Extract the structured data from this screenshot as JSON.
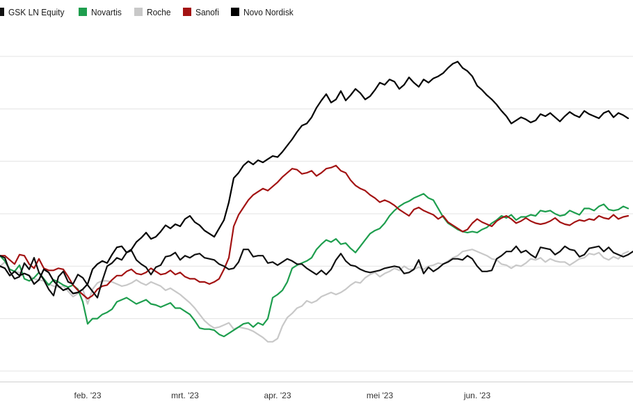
{
  "chart_data": {
    "type": "line",
    "title": "",
    "xlabel": "",
    "ylabel": "",
    "grid": true,
    "legend_position": "top-left",
    "x_ticks": [
      "feb. '23",
      "mrt. '23",
      "apr. '23",
      "mei '23",
      "jun. '23"
    ],
    "x_tick_index": [
      18,
      38,
      57,
      78,
      98
    ],
    "ylim": [
      89,
      120
    ],
    "y_gridlines": [
      90,
      95,
      100,
      105,
      110,
      115,
      120
    ],
    "series": [
      {
        "name": "GSK LN Equity",
        "color": "#111111",
        "values": [
          101,
          100.8,
          99.5,
          98.8,
          99,
          100.3,
          99.7,
          100.8,
          99.4,
          98.7,
          97.8,
          97.2,
          99,
          99.5,
          98.5,
          98.3,
          99.2,
          98.9,
          98.2,
          97.6,
          97,
          98.6,
          100,
          100.3,
          100.8,
          100.6,
          101.3,
          101.5,
          100.6,
          100.2,
          99.9,
          99.2,
          99.9,
          100.1,
          100.9,
          101,
          101.3,
          100.6,
          101,
          100.8,
          101.1,
          101.2,
          100.8,
          100.7,
          100.6,
          100.2,
          100,
          99.7,
          99.8,
          100.4,
          101.6,
          101.6,
          100.9,
          101,
          101,
          100.3,
          100.4,
          100.1,
          100.4,
          100.7,
          100.5,
          100.2,
          100.2,
          99.8,
          99.5,
          99.2,
          99.6,
          99.2,
          99.7,
          100.6,
          101.2,
          100.5,
          100.1,
          100,
          99.7,
          99.5,
          99.4,
          99.5,
          99.6,
          99.8,
          99.9,
          100,
          99.9,
          99.3,
          99.4,
          99.7,
          100.6,
          99.3,
          99.9,
          99.5,
          99.8,
          100.2,
          100.4,
          100.7,
          100.7,
          100.6,
          101,
          100.7,
          100,
          99.5,
          99.5,
          99.6,
          100.7,
          101,
          101.4,
          101.4,
          101.9,
          101.3,
          101.5,
          101.1,
          100.8,
          101.8,
          101.7,
          101.6,
          101.1,
          101.4,
          101.9,
          101.6,
          101.5,
          100.9,
          101.1,
          101.7,
          101.8,
          101.9,
          101.4,
          101.8,
          101.3,
          101.1,
          100.9,
          101.1,
          101.4
        ]
      },
      {
        "name": "Novartis",
        "color": "#1e9e4e",
        "values": [
          101,
          100.5,
          99.7,
          99.5,
          100.1,
          98.8,
          98.6,
          98.9,
          99.4,
          98.8,
          98.2,
          98.7,
          98.5,
          98.2,
          98,
          98.2,
          97.8,
          96.6,
          94.5,
          95,
          95,
          95.4,
          95.6,
          95.9,
          96.6,
          96.8,
          97,
          96.7,
          96.4,
          96.6,
          96.8,
          96.4,
          96.3,
          96.1,
          96.3,
          96.5,
          96,
          96,
          95.7,
          95.4,
          94.8,
          94.1,
          94,
          94,
          93.9,
          93.5,
          93.3,
          93.6,
          93.9,
          94.2,
          94.5,
          94.6,
          94.2,
          94.6,
          94.4,
          95,
          97,
          97.3,
          97.7,
          98.5,
          99.8,
          100.1,
          100.3,
          100.5,
          100.8,
          101.6,
          102.1,
          102.5,
          102.3,
          102.6,
          102.1,
          102.2,
          101.7,
          101.3,
          101.9,
          102.5,
          103.1,
          103.4,
          103.6,
          104.1,
          104.8,
          105.3,
          105.7,
          106,
          106.2,
          106.5,
          106.7,
          106.9,
          106.5,
          106.3,
          105.5,
          104.7,
          104.1,
          103.8,
          103.5,
          103.3,
          103.2,
          103.3,
          103.2,
          103.5,
          103.7,
          104.1,
          104.4,
          104.8,
          104.6,
          104.9,
          104.4,
          104.7,
          104.7,
          104.9,
          104.8,
          105.3,
          105.2,
          105.3,
          105,
          104.8,
          104.9,
          105.3,
          105.1,
          104.9,
          105.5,
          105.5,
          105.3,
          105.7,
          105.9,
          105.4,
          105.3,
          105.4,
          105.7,
          105.5
        ]
      },
      {
        "name": "Roche",
        "color": "#c8c8c8",
        "values": [
          100,
          100.4,
          99.7,
          99.5,
          99.4,
          99.3,
          99.1,
          98.8,
          98.7,
          98.6,
          98.3,
          98.1,
          98,
          98.1,
          97.6,
          97.1,
          97.4,
          97.8,
          96.4,
          97.8,
          98.4,
          98.6,
          98.6,
          98.5,
          98.3,
          98.1,
          98.2,
          98.4,
          98.7,
          98.4,
          98.2,
          98.5,
          98.3,
          98.1,
          97.7,
          97.9,
          97.6,
          97.3,
          96.9,
          96.5,
          96,
          95.4,
          94.8,
          94.4,
          94.1,
          94.2,
          94.4,
          94.6,
          94,
          94.2,
          94.1,
          94,
          93.8,
          93.5,
          93.2,
          92.8,
          92.8,
          93.1,
          94.3,
          95.1,
          95.5,
          96,
          96.2,
          96.7,
          96.5,
          96.7,
          97.1,
          97.3,
          97.5,
          97.3,
          97.5,
          97.8,
          98.2,
          98.5,
          98.4,
          98.9,
          99.2,
          99.4,
          99,
          99.3,
          99.5,
          99.8,
          99.6,
          100,
          99.7,
          99.7,
          99.9,
          99.7,
          100,
          100.1,
          100.3,
          100.2,
          100.5,
          100.8,
          101,
          101.4,
          101.5,
          101.6,
          101.4,
          101.2,
          101,
          100.7,
          100.6,
          100.2,
          100.1,
          99.8,
          100.1,
          100,
          100.3,
          100.7,
          100.6,
          100.8,
          100.4,
          100.7,
          100.5,
          100.4,
          100.4,
          100.1,
          100.4,
          100.7,
          100.8,
          101.2,
          101.1,
          101.3,
          100.8,
          100.6,
          100.9,
          100.7,
          101.2,
          101.4
        ]
      },
      {
        "name": "Sanofi",
        "color": "#a31313",
        "values": [
          101,
          101,
          100.6,
          100.2,
          101.1,
          101,
          100.2,
          99.8,
          100.7,
          99.8,
          99.6,
          99.6,
          99.8,
          99.7,
          99,
          98.2,
          97.7,
          97.3,
          96.9,
          97.2,
          97.8,
          98.1,
          98.2,
          98.7,
          99.1,
          99.1,
          99.5,
          99.7,
          99.3,
          99.2,
          99.4,
          99.8,
          99.5,
          99.2,
          99.3,
          99.6,
          99.2,
          99.4,
          99,
          98.8,
          98.8,
          98.5,
          98.5,
          98.3,
          98.5,
          98.8,
          99.7,
          100.8,
          103.8,
          104.9,
          105.6,
          106.3,
          106.8,
          107.1,
          107.4,
          107.2,
          107.6,
          108,
          108.5,
          108.9,
          109.3,
          109.2,
          108.8,
          108.9,
          109.1,
          108.6,
          108.9,
          109.3,
          109.4,
          109.6,
          109.1,
          108.9,
          108.2,
          107.7,
          107.4,
          107.2,
          106.8,
          106.5,
          106.1,
          106.3,
          106.1,
          105.8,
          105.4,
          105.1,
          104.8,
          105.4,
          105.6,
          105.3,
          105.1,
          104.9,
          104.5,
          104.8,
          104.2,
          103.9,
          103.6,
          103.3,
          103.5,
          104.1,
          104.5,
          104.2,
          104,
          103.8,
          104.3,
          104.6,
          104.8,
          104.5,
          104.1,
          104.3,
          104.6,
          104.3,
          104.1,
          104,
          104.1,
          104.3,
          104.6,
          104.2,
          104,
          103.9,
          104.2,
          104.4,
          104.3,
          104.5,
          104.4,
          104.8,
          104.6,
          104.5,
          104.9,
          104.5,
          104.7,
          104.8
        ]
      },
      {
        "name": "Novo Nordisk",
        "color": "#000000",
        "values": [
          100,
          99.8,
          99.1,
          99.5,
          99.1,
          99.3,
          99.1,
          98.3,
          98.7,
          99.7,
          99.4,
          98.6,
          98.1,
          97.7,
          97.9,
          97.4,
          97.5,
          97.8,
          98.3,
          99.7,
          100.2,
          100.5,
          100.3,
          101.1,
          101.8,
          101.9,
          101.3,
          101.6,
          102.3,
          102.7,
          103.2,
          102.6,
          102.8,
          103.3,
          103.9,
          103.6,
          104,
          103.8,
          104.5,
          104.8,
          104.2,
          103.9,
          103.4,
          103.1,
          102.8,
          103.6,
          104.4,
          106.1,
          108.4,
          108.9,
          109.6,
          110,
          109.7,
          110.1,
          109.9,
          110.2,
          110.5,
          110.4,
          110.9,
          111.5,
          112.1,
          112.8,
          113.4,
          113.6,
          114.2,
          115.1,
          115.8,
          116.4,
          115.6,
          115.9,
          116.7,
          115.8,
          116.3,
          116.9,
          116.5,
          115.9,
          116.2,
          116.8,
          117.5,
          117.3,
          117.8,
          117.6,
          116.9,
          117.3,
          118,
          117.5,
          117.1,
          117.8,
          117.5,
          117.9,
          118.1,
          118.4,
          118.9,
          119.3,
          119.5,
          118.9,
          118.6,
          118.1,
          117.2,
          116.8,
          116.3,
          115.9,
          115.4,
          114.8,
          114.3,
          113.6,
          113.9,
          114.2,
          114,
          113.7,
          113.9,
          114.5,
          114.3,
          114.6,
          114.2,
          113.8,
          114.3,
          114.7,
          114.4,
          114.2,
          114.8,
          114.5,
          114.3,
          114.1,
          114.6,
          114.8,
          114.2,
          114.6,
          114.4,
          114.1
        ]
      }
    ]
  }
}
